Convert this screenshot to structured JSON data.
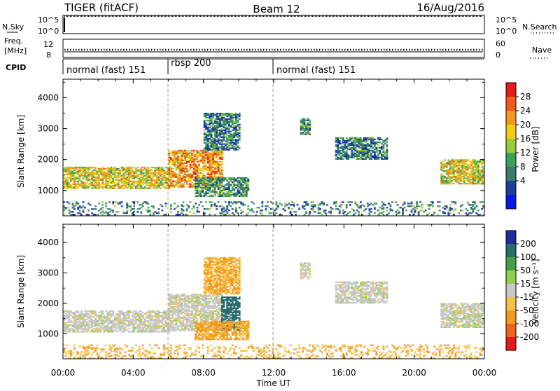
{
  "header": {
    "left": "TIGER (fitACF)",
    "center": "Beam 12",
    "right": "16/Aug/2016"
  },
  "info_panels": {
    "nsky": {
      "label": "N.Sky",
      "right_label": "N.Search",
      "ticks": [
        "10^5",
        "10^0"
      ]
    },
    "freq": {
      "label_line1": "Freq.",
      "label_line2": "[MHz]",
      "left_ticks": [
        "12",
        "8"
      ],
      "right_ticks": [
        "60",
        "0"
      ],
      "right_label": "Nave"
    },
    "cpid": {
      "label": "CPID",
      "segments": [
        "normal (fast) 151",
        "rbsp 200",
        "normal (fast) 151"
      ]
    }
  },
  "colorbars": {
    "power": {
      "title": "Power [dB]",
      "ticks": [
        "28",
        "24",
        "20",
        "16",
        "12",
        "8",
        "4"
      ],
      "colors": [
        "#e8191a",
        "#f25a1c",
        "#f7981d",
        "#f4cd12",
        "#9bcb3b",
        "#3aa25a",
        "#3c7a6b",
        "#1c3f9a",
        "#0b17e6"
      ]
    },
    "velocity": {
      "title": "Velocity [m s⁻¹]",
      "ticks": [
        "200",
        "100",
        "50",
        "15",
        "-15",
        "-50",
        "-100",
        "-200"
      ],
      "colors": [
        "#1b2f9c",
        "#2a6d71",
        "#43a047",
        "#8fd14f",
        "#c8c8c8",
        "#f6c244",
        "#f49a1e",
        "#f0631d",
        "#e21a1a"
      ]
    }
  },
  "chart_data": [
    {
      "type": "heatmap",
      "name": "power",
      "title": "",
      "xlabel": "Time UT",
      "ylabel": "Slant Range [km]",
      "xlim": [
        0,
        24
      ],
      "ylim": [
        180,
        4600
      ],
      "x_ticks": [
        "00:00",
        "04:00",
        "08:00",
        "12:00",
        "16:00",
        "20:00",
        "00:00"
      ],
      "y_ticks": [
        "1000",
        "2000",
        "3000",
        "4000"
      ],
      "regions": [
        {
          "t": [
            0.0,
            6.0
          ],
          "range": [
            1050,
            1750
          ],
          "value_dB": 18
        },
        {
          "t": [
            6.0,
            9.0
          ],
          "range": [
            1100,
            2300
          ],
          "value_dB": 22
        },
        {
          "t": [
            7.5,
            10.5
          ],
          "range": [
            800,
            1400
          ],
          "value_dB": 10
        },
        {
          "t": [
            8.0,
            10.0
          ],
          "range": [
            2300,
            3500
          ],
          "value_dB": 8
        },
        {
          "t": [
            13.5,
            14.0
          ],
          "range": [
            2800,
            3300
          ],
          "value_dB": 10
        },
        {
          "t": [
            15.5,
            18.5
          ],
          "range": [
            2000,
            2700
          ],
          "value_dB": 8
        },
        {
          "t": [
            21.5,
            24.0
          ],
          "range": [
            1200,
            2000
          ],
          "value_dB": 18
        },
        {
          "t": [
            0.0,
            24.0
          ],
          "range": [
            200,
            650
          ],
          "value_dB": 8
        }
      ]
    },
    {
      "type": "heatmap",
      "name": "velocity",
      "title": "",
      "xlabel": "Time UT",
      "ylabel": "Slant Range [km]",
      "xlim": [
        0,
        24
      ],
      "ylim": [
        180,
        4600
      ],
      "x_ticks": [
        "00:00",
        "04:00",
        "08:00",
        "12:00",
        "16:00",
        "20:00",
        "00:00"
      ],
      "y_ticks": [
        "1000",
        "2000",
        "3000",
        "4000"
      ],
      "regions": [
        {
          "t": [
            0.0,
            6.0
          ],
          "range": [
            1050,
            1750
          ],
          "value_ms": 0
        },
        {
          "t": [
            6.0,
            9.0
          ],
          "range": [
            1100,
            2300
          ],
          "value_ms": 0
        },
        {
          "t": [
            9.0,
            10.0
          ],
          "range": [
            1100,
            2200
          ],
          "value_ms": 150
        },
        {
          "t": [
            7.5,
            10.5
          ],
          "range": [
            800,
            1400
          ],
          "value_ms": -60
        },
        {
          "t": [
            8.0,
            10.0
          ],
          "range": [
            2300,
            3500
          ],
          "value_ms": -50
        },
        {
          "t": [
            13.5,
            14.0
          ],
          "range": [
            2800,
            3300
          ],
          "value_ms": 0
        },
        {
          "t": [
            15.5,
            18.5
          ],
          "range": [
            2000,
            2700
          ],
          "value_ms": 0
        },
        {
          "t": [
            21.5,
            24.0
          ],
          "range": [
            1200,
            2000
          ],
          "value_ms": 0
        },
        {
          "t": [
            0.0,
            24.0
          ],
          "range": [
            200,
            650
          ],
          "value_ms": -50
        }
      ]
    }
  ]
}
